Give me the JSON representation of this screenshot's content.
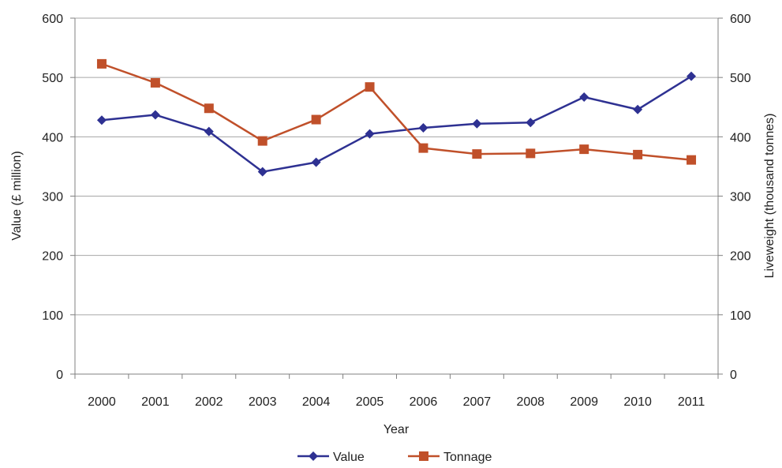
{
  "chart_data": {
    "type": "line",
    "title": "",
    "xlabel": "Year",
    "ylabel": "Value (£ million)",
    "y2label": "Liveweight (thousand tonnes)",
    "categories": [
      "2000",
      "2001",
      "2002",
      "2003",
      "2004",
      "2005",
      "2006",
      "2007",
      "2008",
      "2009",
      "2010",
      "2011"
    ],
    "ylim": [
      0,
      600
    ],
    "y2lim": [
      0,
      600
    ],
    "yticks": [
      "0",
      "100",
      "200",
      "300",
      "400",
      "500",
      "600"
    ],
    "y2ticks": [
      "0",
      "100",
      "200",
      "300",
      "400",
      "500",
      "600"
    ],
    "grid": true,
    "legend_position": "bottom",
    "series": [
      {
        "name": "Value",
        "axis": "left",
        "color": "#2E3192",
        "marker": "diamond",
        "values": [
          428,
          437,
          409,
          341,
          357,
          405,
          415,
          422,
          424,
          467,
          446,
          502
        ]
      },
      {
        "name": "Tonnage",
        "axis": "right",
        "color": "#C0502A",
        "marker": "square",
        "values": [
          523,
          491,
          448,
          393,
          429,
          484,
          381,
          371,
          372,
          379,
          370,
          361
        ]
      }
    ]
  }
}
